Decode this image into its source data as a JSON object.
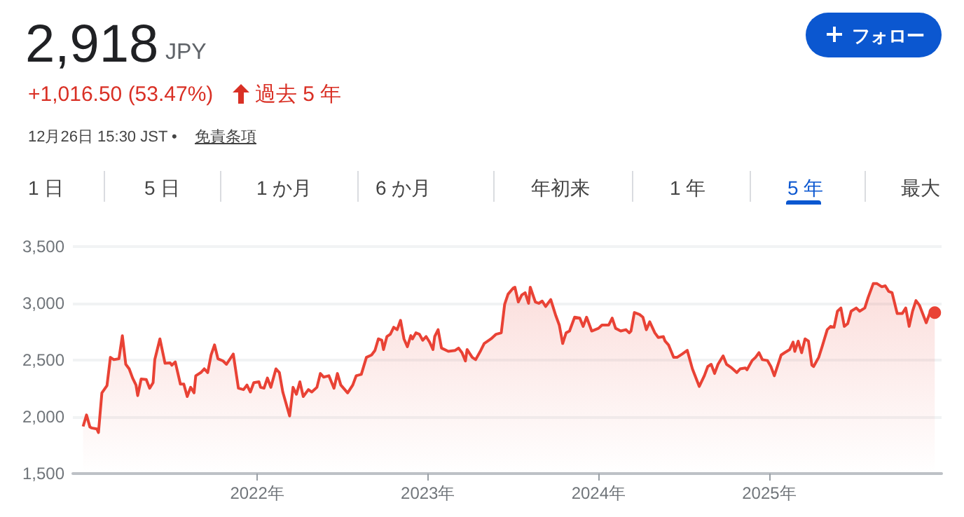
{
  "chart_data": {
    "type": "area",
    "title": "2,918",
    "subtitle": "JPY",
    "annotations": [
      "+1,016.50 (53.47%)",
      "過去 5 年",
      "12月26日 15:30 JST •",
      "免責条項",
      "フォロー",
      "1 日",
      "5 日",
      "1 か月",
      "6 か月",
      "年初来",
      "1 年",
      "5 年",
      "最大"
    ],
    "x": [
      2020.98,
      2021.0,
      2021.02,
      2021.03,
      2021.06,
      2021.07,
      2021.09,
      2021.12,
      2021.14,
      2021.16,
      2021.19,
      2021.21,
      2021.23,
      2021.25,
      2021.27,
      2021.29,
      2021.3,
      2021.32,
      2021.35,
      2021.37,
      2021.39,
      2021.4,
      2021.43,
      2021.46,
      2021.49,
      2021.5,
      2021.52,
      2021.55,
      2021.57,
      2021.59,
      2021.61,
      2021.63,
      2021.64,
      2021.67,
      2021.69,
      2021.71,
      2021.73,
      2021.75,
      2021.77,
      2021.8,
      2021.82,
      2021.86,
      2021.89,
      2021.92,
      2021.94,
      2021.96,
      2021.98,
      2022.01,
      2022.02,
      2022.04,
      2022.06,
      2022.08,
      2022.11,
      2022.13,
      2022.15,
      2022.19,
      2022.21,
      2022.23,
      2022.25,
      2022.27,
      2022.3,
      2022.32,
      2022.35,
      2022.37,
      2022.39,
      2022.42,
      2022.45,
      2022.47,
      2022.49,
      2022.53,
      2022.56,
      2022.58,
      2022.61,
      2022.64,
      2022.67,
      2022.69,
      2022.71,
      2022.73,
      2022.74,
      2022.76,
      2022.78,
      2022.8,
      2022.82,
      2022.84,
      2022.86,
      2022.88,
      2022.9,
      2022.91,
      2022.93,
      2022.95,
      2022.97,
      2022.99,
      2023.01,
      2023.03,
      2023.04,
      2023.06,
      2023.08,
      2023.12,
      2023.16,
      2023.18,
      2023.2,
      2023.22,
      2023.23,
      2023.26,
      2023.28,
      2023.31,
      2023.33,
      2023.37,
      2023.4,
      2023.43,
      2023.45,
      2023.47,
      2023.5,
      2023.51,
      2023.53,
      2023.55,
      2023.57,
      2023.59,
      2023.6,
      2023.63,
      2023.65,
      2023.67,
      2023.69,
      2023.72,
      2023.75,
      2023.77,
      2023.79,
      2023.81,
      2023.83,
      2023.86,
      2023.89,
      2023.91,
      2023.93,
      2023.96,
      2024.0,
      2024.02,
      2024.06,
      2024.08,
      2024.1,
      2024.13,
      2024.16,
      2024.18,
      2024.19,
      2024.21,
      2024.24,
      2024.26,
      2024.28,
      2024.3,
      2024.33,
      2024.35,
      2024.38,
      2024.39,
      2024.41,
      2024.44,
      2024.46,
      2024.49,
      2024.52,
      2024.55,
      2024.59,
      2024.62,
      2024.64,
      2024.66,
      2024.68,
      2024.7,
      2024.73,
      2024.75,
      2024.78,
      2024.81,
      2024.83,
      2024.86,
      2024.87,
      2024.9,
      2024.92,
      2024.94,
      2024.96,
      2024.99,
      2025.01,
      2025.03,
      2025.07,
      2025.09,
      2025.12,
      2025.14,
      2025.15,
      2025.17,
      2025.19,
      2025.21,
      2025.23,
      2025.25,
      2025.26,
      2025.29,
      2025.31,
      2025.34,
      2025.36,
      2025.38,
      2025.4,
      2025.42,
      2025.44,
      2025.46,
      2025.48,
      2025.51,
      2025.53,
      2025.56,
      2025.58,
      2025.61,
      2025.63,
      2025.66,
      2025.68,
      2025.7,
      2025.72,
      2025.75,
      2025.78,
      2025.8,
      2025.82,
      2025.84,
      2025.86,
      2025.88,
      2025.92,
      2025.94,
      2025.97
    ],
    "series": [
      {
        "color": "#e94235",
        "values": [
          1915,
          2016,
          1910,
          1902,
          1894,
          1862,
          2211,
          2276,
          2524,
          2504,
          2512,
          2715,
          2463,
          2423,
          2342,
          2280,
          2187,
          2333,
          2329,
          2252,
          2301,
          2504,
          2687,
          2472,
          2476,
          2455,
          2484,
          2289,
          2289,
          2179,
          2260,
          2211,
          2362,
          2390,
          2423,
          2390,
          2545,
          2634,
          2512,
          2492,
          2463,
          2553,
          2252,
          2240,
          2280,
          2219,
          2301,
          2309,
          2260,
          2252,
          2342,
          2260,
          2423,
          2390,
          2219,
          2008,
          2260,
          2199,
          2309,
          2179,
          2240,
          2219,
          2260,
          2382,
          2350,
          2362,
          2252,
          2382,
          2280,
          2211,
          2280,
          2362,
          2374,
          2524,
          2545,
          2585,
          2687,
          2675,
          2593,
          2707,
          2728,
          2789,
          2768,
          2850,
          2687,
          2618,
          2715,
          2687,
          2740,
          2728,
          2675,
          2707,
          2659,
          2593,
          2707,
          2768,
          2606,
          2577,
          2585,
          2606,
          2565,
          2492,
          2593,
          2524,
          2504,
          2585,
          2646,
          2687,
          2728,
          2740,
          2992,
          3081,
          3134,
          3142,
          3012,
          3073,
          3093,
          3000,
          3142,
          3012,
          3000,
          3020,
          2972,
          3033,
          2890,
          2809,
          2646,
          2740,
          2756,
          2878,
          2870,
          2797,
          2878,
          2756,
          2780,
          2809,
          2809,
          2870,
          2780,
          2756,
          2768,
          2740,
          2756,
          2919,
          2902,
          2878,
          2768,
          2837,
          2740,
          2699,
          2707,
          2667,
          2634,
          2524,
          2524,
          2553,
          2585,
          2423,
          2268,
          2362,
          2443,
          2463,
          2382,
          2463,
          2537,
          2463,
          2431,
          2390,
          2423,
          2431,
          2415,
          2496,
          2524,
          2565,
          2504,
          2496,
          2443,
          2362,
          2545,
          2565,
          2593,
          2659,
          2577,
          2667,
          2565,
          2687,
          2667,
          2455,
          2443,
          2524,
          2618,
          2768,
          2797,
          2789,
          2931,
          2959,
          2797,
          2821,
          2931,
          2959,
          2931,
          2959,
          3053,
          3175,
          3175,
          3146,
          3154,
          3106,
          3093,
          2911,
          2911,
          2959,
          2797,
          2931,
          3024,
          2984,
          2829,
          2911,
          2918
        ]
      }
    ],
    "xlim": [
      2020.92,
      2026.01
    ],
    "xticks": [
      {
        "value": 2022,
        "label": "2022年"
      },
      {
        "value": 2023,
        "label": "2023年"
      },
      {
        "value": 2024,
        "label": "2024年"
      },
      {
        "value": 2025,
        "label": "2025年"
      }
    ],
    "ylim": [
      1500,
      3500
    ],
    "yticks": [
      {
        "value": 1500,
        "label": "1,500"
      },
      {
        "value": 2000,
        "label": "2,000"
      },
      {
        "value": 2500,
        "label": "2,500"
      },
      {
        "value": 3000,
        "label": "3,000"
      },
      {
        "value": 3500,
        "label": "3,500"
      }
    ],
    "grid": "y"
  }
}
